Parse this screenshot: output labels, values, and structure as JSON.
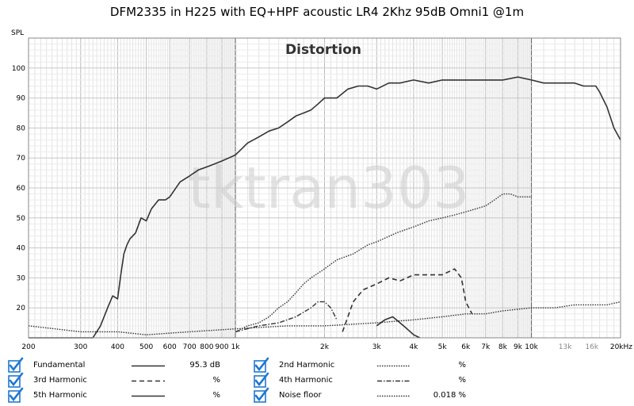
{
  "chart_data": {
    "type": "line",
    "title": "DFM2335 in H225 with EQ+HPF acoustic LR4 2Khz 95dB Omni1 @1m",
    "subtitle": "Distortion",
    "watermark": "tktran303",
    "ylabel": "SPL",
    "xlabel": "",
    "xscale": "log",
    "xlim": [
      200,
      20000
    ],
    "ylim": [
      10,
      110
    ],
    "grid": true,
    "xticks": [
      {
        "v": 200,
        "label": "200"
      },
      {
        "v": 300,
        "label": "300"
      },
      {
        "v": 400,
        "label": "400"
      },
      {
        "v": 500,
        "label": "500"
      },
      {
        "v": 600,
        "label": "600"
      },
      {
        "v": 700,
        "label": "700"
      },
      {
        "v": 800,
        "label": "800"
      },
      {
        "v": 900,
        "label": "900"
      },
      {
        "v": 1000,
        "label": "1k"
      },
      {
        "v": 2000,
        "label": "2k"
      },
      {
        "v": 3000,
        "label": "3k"
      },
      {
        "v": 4000,
        "label": "4k"
      },
      {
        "v": 5000,
        "label": "5k"
      },
      {
        "v": 6000,
        "label": "6k"
      },
      {
        "v": 7000,
        "label": "7k"
      },
      {
        "v": 8000,
        "label": "8k"
      },
      {
        "v": 9000,
        "label": "9k"
      },
      {
        "v": 10000,
        "label": "10k"
      },
      {
        "v": 13000,
        "label": "13k"
      },
      {
        "v": 16000,
        "label": "16k"
      },
      {
        "v": 20000,
        "label": "20kHz"
      }
    ],
    "yticks": [
      20,
      30,
      40,
      50,
      60,
      70,
      80,
      90,
      100
    ],
    "series": [
      {
        "name": "Fundamental",
        "value": "95.3 dB",
        "style": "solid",
        "legend_col": 0,
        "legend_row": 0,
        "x": [
          200,
          220,
          250,
          280,
          300,
          330,
          350,
          370,
          385,
          400,
          410,
          420,
          430,
          440,
          460,
          480,
          500,
          520,
          550,
          580,
          600,
          650,
          700,
          750,
          800,
          850,
          900,
          950,
          1000,
          1100,
          1200,
          1300,
          1400,
          1500,
          1600,
          1700,
          1800,
          1900,
          2000,
          2200,
          2400,
          2600,
          2800,
          3000,
          3300,
          3600,
          4000,
          4500,
          5000,
          5500,
          6000,
          7000,
          8000,
          9000,
          10000,
          11000,
          12000,
          13000,
          14000,
          15000,
          16000,
          16500,
          17000,
          18000,
          19000,
          20000
        ],
        "y": [
          10,
          10,
          10,
          10,
          10,
          10,
          14,
          20,
          24,
          23,
          31,
          38,
          41,
          43,
          45,
          50,
          49,
          53,
          56,
          56,
          57,
          62,
          64,
          66,
          67,
          68,
          69,
          70,
          71,
          75,
          77,
          79,
          80,
          82,
          84,
          85,
          86,
          88,
          90,
          90,
          93,
          94,
          94,
          93,
          95,
          95,
          96,
          95,
          96,
          96,
          96,
          96,
          96,
          97,
          96,
          95,
          95,
          95,
          95,
          94,
          94,
          94,
          92,
          87,
          80,
          76
        ]
      },
      {
        "name": "2nd Harmonic",
        "value": "%",
        "style": "dotted",
        "legend_col": 1,
        "legend_row": 0,
        "x": [
          1000,
          1100,
          1200,
          1300,
          1400,
          1500,
          1600,
          1700,
          1800,
          2000,
          2200,
          2500,
          2800,
          3000,
          3500,
          4000,
          4500,
          5000,
          5500,
          6000,
          7000,
          7500,
          8000,
          8500,
          9000,
          10000
        ],
        "y": [
          12,
          14,
          15,
          17,
          20,
          22,
          25,
          28,
          30,
          33,
          36,
          38,
          41,
          42,
          45,
          47,
          49,
          50,
          51,
          52,
          54,
          56,
          58,
          58,
          57,
          57
        ]
      },
      {
        "name": "3rd Harmonic",
        "value": "%",
        "style": "dashed",
        "legend_col": 0,
        "legend_row": 1,
        "x": [
          2300,
          2500,
          2700,
          3000,
          3300,
          3600,
          4000,
          4500,
          5000,
          5500,
          5800,
          6000,
          6300
        ],
        "y": [
          12,
          22,
          26,
          28,
          30,
          29,
          31,
          31,
          31,
          33,
          30,
          22,
          18
        ]
      },
      {
        "name": "4th Harmonic",
        "value": "%",
        "style": "dashdot",
        "legend_col": 1,
        "legend_row": 1,
        "x": [
          1000,
          1200,
          1400,
          1600,
          1800,
          1900,
          2000,
          2100,
          2200
        ],
        "y": [
          12,
          14,
          15,
          17,
          20,
          22,
          22,
          20,
          16
        ]
      },
      {
        "name": "5th Harmonic",
        "value": "%",
        "style": "solid",
        "legend_col": 0,
        "legend_row": 2,
        "x": [
          3000,
          3200,
          3400,
          3600,
          3800,
          4000,
          4200
        ],
        "y": [
          14,
          16,
          17,
          15,
          13,
          11,
          10
        ]
      },
      {
        "name": "Noise floor",
        "value": "0.018 %",
        "style": "dotted",
        "legend_col": 1,
        "legend_row": 2,
        "x": [
          200,
          300,
          400,
          500,
          700,
          1000,
          1500,
          2000,
          3000,
          4000,
          5000,
          6000,
          7000,
          8000,
          10000,
          12000,
          14000,
          16000,
          18000,
          20000
        ],
        "y": [
          14,
          12,
          12,
          11,
          12,
          13,
          14,
          14,
          15,
          16,
          17,
          18,
          18,
          19,
          20,
          20,
          21,
          21,
          21,
          22
        ]
      }
    ]
  }
}
